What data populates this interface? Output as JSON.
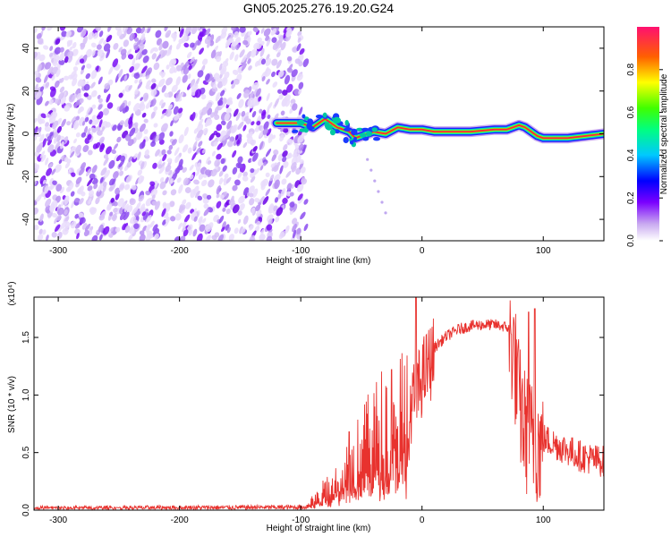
{
  "title": "GN05.2025.276.19.20.G24",
  "chart_data": [
    {
      "type": "heatmap",
      "xlabel": "Height of straight line (km)",
      "ylabel": "Frequency (Hz)",
      "xlim": [
        -320,
        150
      ],
      "ylim": [
        -50,
        50
      ],
      "xticks": [
        -300,
        -200,
        -100,
        0,
        100
      ],
      "yticks": [
        -40,
        -20,
        0,
        20,
        40
      ],
      "noise_region_x": [
        -320,
        -100
      ],
      "signal_track": {
        "x": [
          -120,
          -100,
          -90,
          -80,
          -70,
          -60,
          -55,
          -50,
          -45,
          -40,
          -30,
          -20,
          -10,
          0,
          10,
          20,
          40,
          60,
          70,
          80,
          85,
          95,
          100,
          120,
          150
        ],
        "frequency": [
          5,
          5,
          3,
          7,
          3,
          1,
          -2,
          -1,
          0,
          1,
          0,
          3,
          2,
          2,
          1,
          1,
          1,
          2,
          2,
          4,
          3,
          -1,
          -2,
          -2,
          0
        ]
      },
      "colorbar": {
        "label": "Normalized spectral amplitude",
        "ticks": [
          "0.0",
          "0.2",
          "0.4",
          "0.6",
          "0.8"
        ],
        "range": [
          0,
          1
        ]
      }
    },
    {
      "type": "line",
      "xlabel": "Height of straight line (km)",
      "ylabel": "SNR (10 * v/v)",
      "scale_label": "(x10⁴)",
      "xlim": [
        -320,
        150
      ],
      "ylim": [
        0,
        1.85
      ],
      "xticks": [
        -300,
        -200,
        -100,
        0,
        100
      ],
      "yticks": [
        0.0,
        0.5,
        1.0,
        1.5
      ],
      "series": [
        {
          "name": "SNR",
          "color": "#e8322e",
          "envelope": {
            "x": [
              -320,
              -100,
              -90,
              -80,
              -70,
              -60,
              -50,
              -40,
              -30,
              -20,
              -10,
              -5,
              0,
              10,
              20,
              30,
              40,
              50,
              60,
              70,
              75,
              80,
              85,
              90,
              95,
              100,
              110,
              120,
              130,
              140,
              150
            ],
            "y": [
              0.02,
              0.03,
              0.08,
              0.18,
              0.3,
              0.42,
              0.55,
              0.7,
              0.82,
              0.9,
              0.98,
              1.05,
              1.22,
              1.42,
              1.52,
              1.58,
              1.61,
              1.62,
              1.62,
              1.6,
              1.55,
              1.05,
              0.8,
              0.72,
              0.7,
              0.65,
              0.6,
              0.55,
              0.5,
              0.47,
              0.45
            ]
          },
          "spikes": [
            {
              "x": -5,
              "y": 1.85
            },
            {
              "x": -25,
              "y": 1.22
            },
            {
              "x": -60,
              "y": 0.68
            },
            {
              "x": 88,
              "y": 1.72
            },
            {
              "x": 93,
              "y": 1.75
            }
          ]
        }
      ]
    }
  ]
}
